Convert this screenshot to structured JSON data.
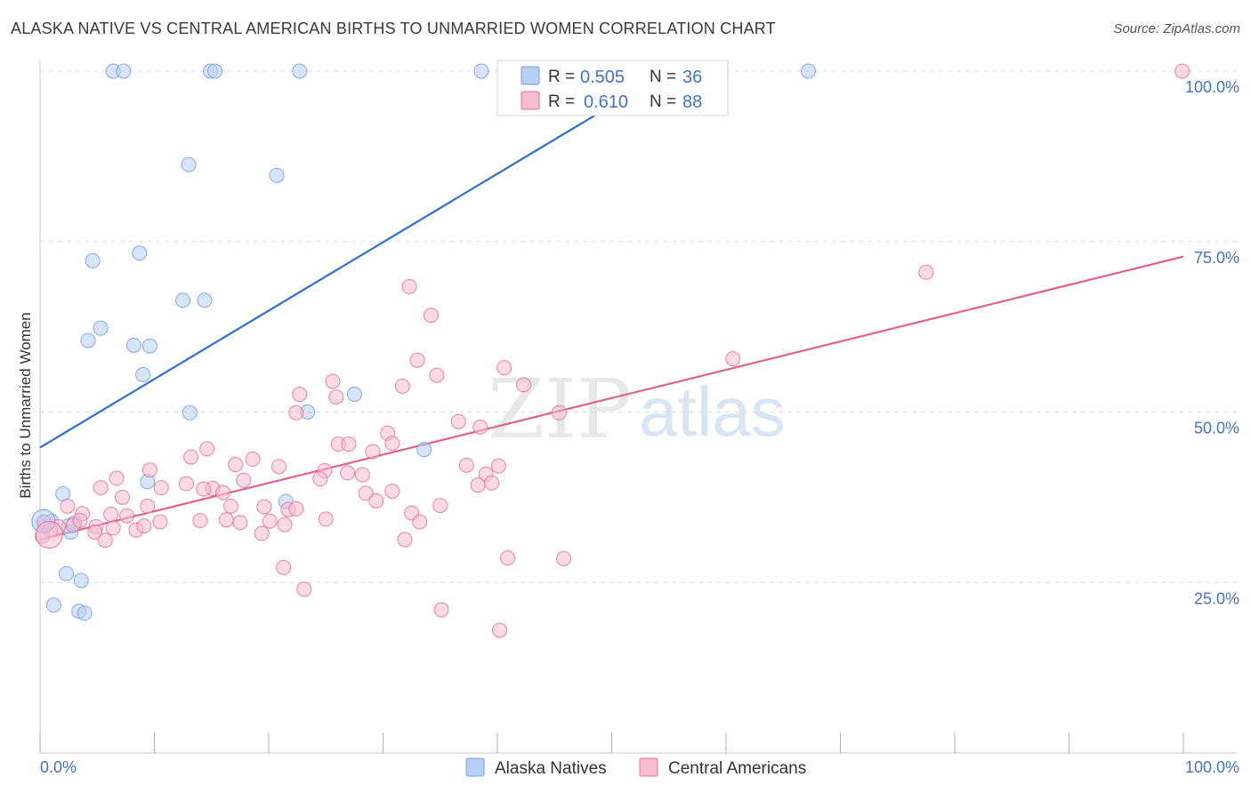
{
  "title": "ALASKA NATIVE VS CENTRAL AMERICAN BIRTHS TO UNMARRIED WOMEN CORRELATION CHART",
  "source": "Source: ZipAtlas.com",
  "watermark": {
    "zip": "ZIP",
    "atlas": "atlas"
  },
  "legend": {
    "r_label": "R =",
    "n_label": "N =",
    "series": [
      {
        "name": "Alaska Natives",
        "r": "0.505",
        "n": "36",
        "color": "#6e9ee8",
        "fill": "#b8cff4"
      },
      {
        "name": "Central Americans",
        "r": "0.610",
        "n": "88",
        "color": "#e56f9a",
        "fill": "#f7bccf"
      }
    ]
  },
  "chart_data": {
    "type": "scatter",
    "title": "ALASKA NATIVE VS CENTRAL AMERICAN BIRTHS TO UNMARRIED WOMEN CORRELATION CHART",
    "xlabel": "",
    "ylabel": "Births to Unmarried Women",
    "xlim": [
      0,
      100
    ],
    "ylim": [
      0,
      100
    ],
    "x_ticks": [
      "0.0%",
      "100.0%"
    ],
    "y_ticks": [
      "25.0%",
      "50.0%",
      "75.0%",
      "100.0%"
    ],
    "y_tick_values": [
      25,
      50,
      75,
      100
    ],
    "grid": true,
    "legend_position": "top-center",
    "series": [
      {
        "name": "Alaska Natives",
        "color": "#6e9ee8",
        "trend": {
          "x": [
            0,
            55
          ],
          "y": [
            44.8,
            100
          ]
        },
        "points": [
          [
            6.4,
            100
          ],
          [
            7.3,
            100
          ],
          [
            14.9,
            100
          ],
          [
            15.3,
            100
          ],
          [
            22.7,
            100
          ],
          [
            38.6,
            100
          ],
          [
            67.2,
            100
          ],
          [
            13,
            86.3
          ],
          [
            20.7,
            84.7
          ],
          [
            4.6,
            72.2
          ],
          [
            8.7,
            73.3
          ],
          [
            12.5,
            66.4
          ],
          [
            14.4,
            66.4
          ],
          [
            5.3,
            62.3
          ],
          [
            4.2,
            60.5
          ],
          [
            8.2,
            59.8
          ],
          [
            9.6,
            59.7
          ],
          [
            9,
            55.5
          ],
          [
            13.1,
            49.9
          ],
          [
            23.4,
            50
          ],
          [
            27.5,
            52.6
          ],
          [
            33.6,
            44.5
          ],
          [
            2,
            38
          ],
          [
            9.4,
            39.8
          ],
          [
            21.5,
            36.9
          ],
          [
            0.5,
            33.4
          ],
          [
            1,
            34
          ],
          [
            2.5,
            33.3
          ],
          [
            2.7,
            32.4
          ],
          [
            3,
            33.7
          ],
          [
            2.3,
            26.3
          ],
          [
            3.6,
            25.3
          ],
          [
            1.2,
            21.7
          ],
          [
            3.4,
            20.8
          ],
          [
            3.9,
            20.5
          ],
          [
            0.3,
            33.9
          ]
        ]
      },
      {
        "name": "Central Americans",
        "color": "#e56f9a",
        "trend": {
          "x": [
            0,
            100
          ],
          "y": [
            31.3,
            72.8
          ]
        },
        "points": [
          [
            99.9,
            100
          ],
          [
            77.5,
            70.5
          ],
          [
            32.3,
            68.4
          ],
          [
            34.2,
            64.2
          ],
          [
            60.6,
            57.8
          ],
          [
            33,
            57.6
          ],
          [
            40.6,
            56.5
          ],
          [
            34.7,
            55.4
          ],
          [
            25.6,
            54.5
          ],
          [
            42.3,
            54
          ],
          [
            31.7,
            53.8
          ],
          [
            22.7,
            52.6
          ],
          [
            25.9,
            52.2
          ],
          [
            22.4,
            49.9
          ],
          [
            45.4,
            49.9
          ],
          [
            36.6,
            48.6
          ],
          [
            38.5,
            47.8
          ],
          [
            30.4,
            46.9
          ],
          [
            26.1,
            45.3
          ],
          [
            27,
            45.3
          ],
          [
            30.8,
            45.4
          ],
          [
            29.1,
            44.2
          ],
          [
            14.6,
            44.6
          ],
          [
            13.2,
            43.4
          ],
          [
            18.6,
            43.1
          ],
          [
            17.1,
            42.3
          ],
          [
            20.9,
            42
          ],
          [
            37.3,
            42.2
          ],
          [
            40.1,
            42.1
          ],
          [
            24.9,
            41.4
          ],
          [
            26.9,
            41.1
          ],
          [
            28.2,
            40.8
          ],
          [
            39,
            40.9
          ],
          [
            9.6,
            41.5
          ],
          [
            6.7,
            40.3
          ],
          [
            17.8,
            40
          ],
          [
            24.5,
            40.2
          ],
          [
            12.8,
            39.5
          ],
          [
            5.3,
            38.9
          ],
          [
            10.6,
            38.9
          ],
          [
            15.1,
            38.8
          ],
          [
            14.3,
            38.7
          ],
          [
            16,
            38.2
          ],
          [
            38.3,
            39.3
          ],
          [
            39.5,
            39.6
          ],
          [
            28.5,
            38.1
          ],
          [
            30.8,
            38.4
          ],
          [
            7.2,
            37.5
          ],
          [
            2.4,
            36.2
          ],
          [
            9.4,
            36.2
          ],
          [
            16.7,
            36.2
          ],
          [
            19.6,
            36.1
          ],
          [
            21.7,
            35.7
          ],
          [
            22.4,
            35.8
          ],
          [
            29.4,
            37
          ],
          [
            35,
            36.3
          ],
          [
            3.7,
            35.1
          ],
          [
            6.2,
            35
          ],
          [
            7.6,
            34.8
          ],
          [
            10.5,
            33.9
          ],
          [
            4.9,
            33.2
          ],
          [
            14,
            34.1
          ],
          [
            16.3,
            34.2
          ],
          [
            17.5,
            33.8
          ],
          [
            20.1,
            34
          ],
          [
            21.4,
            33.5
          ],
          [
            25,
            34.3
          ],
          [
            32.5,
            35.2
          ],
          [
            33.2,
            33.9
          ],
          [
            0.4,
            33.8
          ],
          [
            1.6,
            33.2
          ],
          [
            2.9,
            33.4
          ],
          [
            3.5,
            34.1
          ],
          [
            0.9,
            32.7
          ],
          [
            4.8,
            32.4
          ],
          [
            8.4,
            32.7
          ],
          [
            19.4,
            32.2
          ],
          [
            31.9,
            31.3
          ],
          [
            21.3,
            27.2
          ],
          [
            23.1,
            24
          ],
          [
            40.9,
            28.6
          ],
          [
            45.8,
            28.5
          ],
          [
            35.1,
            21
          ],
          [
            40.2,
            18
          ],
          [
            5.7,
            31.2
          ],
          [
            6.4,
            33
          ],
          [
            9.1,
            33.3
          ],
          [
            0.2,
            31.8
          ]
        ]
      }
    ]
  }
}
